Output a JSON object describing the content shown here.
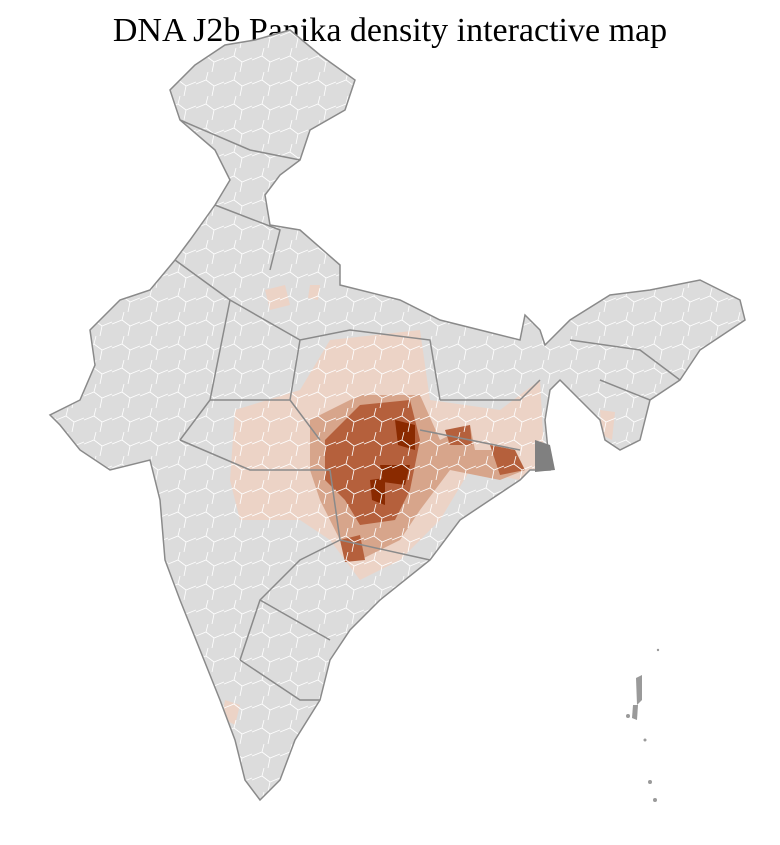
{
  "title": "DNA J2b Panika density interactive map",
  "colors": {
    "no_data": "#dcdcdc",
    "low": "#ecd3c6",
    "medium": "#d7a58b",
    "high": "#b5603c",
    "highest": "#8a2a00",
    "state_border": "#8a8a8a",
    "district_border": "#ffffff"
  }
}
